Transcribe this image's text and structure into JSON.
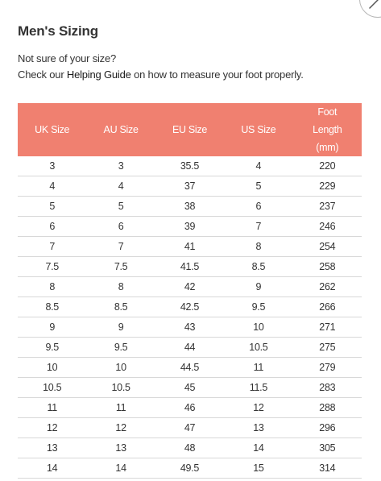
{
  "page": {
    "title": "Men's Sizing",
    "intro_line1": "Not sure of your size?",
    "intro_prefix": "Check our ",
    "intro_link": "Helping Guide",
    "intro_suffix": " on how to measure your foot properly."
  },
  "table": {
    "header_color": "#f08070",
    "columns": [
      "UK Size",
      "AU Size",
      "EU Size",
      "US Size",
      "Foot Length (mm)"
    ],
    "rows": [
      [
        "3",
        "3",
        "35.5",
        "4",
        "220"
      ],
      [
        "4",
        "4",
        "37",
        "5",
        "229"
      ],
      [
        "5",
        "5",
        "38",
        "6",
        "237"
      ],
      [
        "6",
        "6",
        "39",
        "7",
        "246"
      ],
      [
        "7",
        "7",
        "41",
        "8",
        "254"
      ],
      [
        "7.5",
        "7.5",
        "41.5",
        "8.5",
        "258"
      ],
      [
        "8",
        "8",
        "42",
        "9",
        "262"
      ],
      [
        "8.5",
        "8.5",
        "42.5",
        "9.5",
        "266"
      ],
      [
        "9",
        "9",
        "43",
        "10",
        "271"
      ],
      [
        "9.5",
        "9.5",
        "44",
        "10.5",
        "275"
      ],
      [
        "10",
        "10",
        "44.5",
        "11",
        "279"
      ],
      [
        "10.5",
        "10.5",
        "45",
        "11.5",
        "283"
      ],
      [
        "11",
        "11",
        "46",
        "12",
        "288"
      ],
      [
        "12",
        "12",
        "47",
        "13",
        "296"
      ],
      [
        "13",
        "13",
        "48",
        "14",
        "305"
      ],
      [
        "14",
        "14",
        "49.5",
        "15",
        "314"
      ]
    ]
  },
  "icons": {
    "close": "close-icon"
  }
}
